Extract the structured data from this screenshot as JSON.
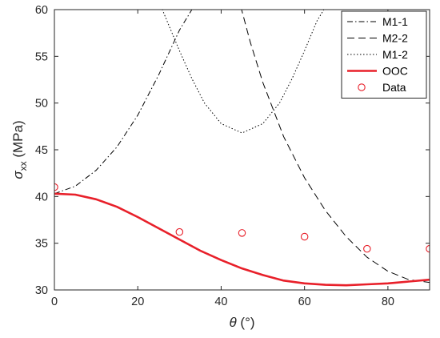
{
  "chart_data": {
    "type": "line",
    "title": "",
    "xlabel": {
      "symbol": "θ",
      "unit": " (°)"
    },
    "ylabel": {
      "symbol": "σ",
      "subscript": "xx",
      "unit": " (MPa)"
    },
    "xlim": [
      0,
      90
    ],
    "ylim": [
      30,
      60
    ],
    "xticks": [
      0,
      20,
      40,
      60,
      80
    ],
    "yticks": [
      30,
      35,
      40,
      45,
      50,
      55,
      60
    ],
    "grid": false,
    "legend": "top-right",
    "series": [
      {
        "name": "M1-1",
        "kind": "line",
        "style": "dashdot",
        "color": "#000000",
        "x": [
          0,
          5,
          10,
          15,
          20,
          25,
          30,
          35
        ],
        "y": [
          40.3,
          41.1,
          42.8,
          45.3,
          48.7,
          53.0,
          57.8,
          61.5
        ]
      },
      {
        "name": "M2-2",
        "kind": "line",
        "style": "dashed",
        "color": "#000000",
        "x": [
          44,
          47,
          50,
          55,
          60,
          65,
          70,
          75,
          80,
          85,
          90
        ],
        "y": [
          61.5,
          56.5,
          52.2,
          46.4,
          42.0,
          38.5,
          35.7,
          33.5,
          32.0,
          31.1,
          30.8
        ]
      },
      {
        "name": "M1-2",
        "kind": "line",
        "style": "dotted",
        "color": "#000000",
        "x": [
          25,
          27,
          30,
          33,
          36,
          40,
          45,
          50,
          54,
          57,
          60,
          63,
          66
        ],
        "y": [
          61.0,
          58.8,
          55.6,
          52.6,
          50.0,
          47.8,
          46.8,
          47.8,
          50.0,
          52.6,
          55.6,
          58.8,
          61.0
        ]
      },
      {
        "name": "OOC",
        "kind": "line",
        "style": "solid",
        "color": "#e8202a",
        "x": [
          0,
          5,
          10,
          15,
          20,
          25,
          30,
          35,
          40,
          45,
          50,
          55,
          60,
          65,
          70,
          75,
          80,
          85,
          90
        ],
        "y": [
          40.3,
          40.2,
          39.7,
          38.9,
          37.8,
          36.6,
          35.4,
          34.2,
          33.2,
          32.3,
          31.6,
          31.0,
          30.7,
          30.55,
          30.5,
          30.6,
          30.7,
          30.9,
          31.1
        ]
      },
      {
        "name": "Data",
        "kind": "marker",
        "style": "circle",
        "color": "#e8202a",
        "x": [
          0,
          30,
          45,
          60,
          75,
          90
        ],
        "y": [
          41.0,
          36.2,
          36.1,
          35.7,
          34.4,
          34.4
        ]
      }
    ]
  }
}
